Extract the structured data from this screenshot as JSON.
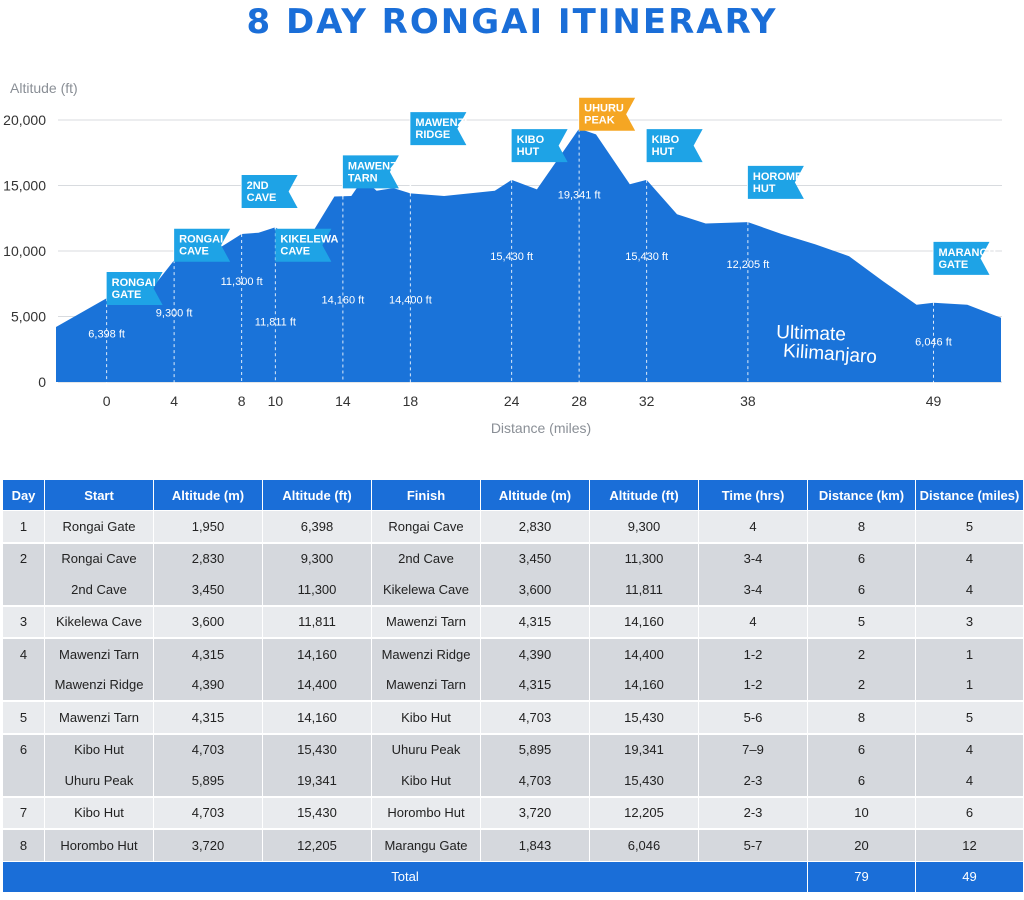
{
  "title": "8 DAY RONGAI ITINERARY",
  "chart_data": {
    "type": "area",
    "ylabel": "Altitude (ft)",
    "xlabel": "Distance (miles)",
    "ylim": [
      0,
      21000
    ],
    "xlim": [
      -3,
      53
    ],
    "yticks": [
      0,
      5000,
      10000,
      15000,
      20000
    ],
    "ytick_labels": [
      "0",
      "5,000",
      "10,000",
      "15,000",
      "20,000"
    ],
    "xticks": [
      0,
      4,
      8,
      10,
      14,
      18,
      24,
      28,
      32,
      38,
      49
    ],
    "grid": "horizontal",
    "color": "#1a73d9",
    "profile": {
      "x": [
        -3,
        0,
        1,
        2.6,
        4,
        5,
        6.4,
        8,
        9,
        10,
        11,
        12,
        13.5,
        14.5,
        15.2,
        16,
        17,
        18,
        20,
        23,
        24,
        25.5,
        28,
        29,
        31,
        32,
        33.8,
        35.5,
        38,
        40,
        42,
        44,
        46,
        48,
        49,
        51,
        53
      ],
      "y": [
        4200,
        6398,
        6200,
        7000,
        9300,
        9800,
        10000,
        11300,
        11400,
        11811,
        10900,
        11000,
        14160,
        14200,
        15500,
        14600,
        14800,
        14400,
        14200,
        14600,
        15430,
        14700,
        19341,
        18900,
        15100,
        15430,
        12800,
        12100,
        12205,
        11300,
        10500,
        9600,
        7700,
        5900,
        6046,
        5900,
        4900
      ]
    },
    "markers": [
      {
        "x": 0,
        "y": 6398,
        "flag": [
          "RONGAI",
          "GATE"
        ],
        "value_label": "6,398 ft",
        "flag_alt": 8400,
        "label_alt": 3400,
        "highlight": false
      },
      {
        "x": 4,
        "y": 9300,
        "flag": [
          "RONGAI",
          "CAVE"
        ],
        "value_label": "9,300 ft",
        "flag_alt": 11700,
        "label_alt": 5000,
        "highlight": false
      },
      {
        "x": 8,
        "y": 11300,
        "flag": [
          "2ND",
          "CAVE"
        ],
        "value_label": "11,300 ft",
        "flag_alt": 15800,
        "label_alt": 7400,
        "highlight": false
      },
      {
        "x": 10,
        "y": 11811,
        "flag": [
          "KIKELEWA",
          "CAVE"
        ],
        "value_label": "11,811 ft",
        "flag_alt": 11700,
        "label_alt": 4300,
        "highlight": false
      },
      {
        "x": 14,
        "y": 14160,
        "flag": [
          "MAWENZI",
          "TARN"
        ],
        "value_label": "14,160 ft",
        "flag_alt": 17300,
        "label_alt": 6000,
        "highlight": false
      },
      {
        "x": 18,
        "y": 14400,
        "flag": [
          "MAWENZI",
          "RIDGE"
        ],
        "value_label": "14,400 ft",
        "flag_alt": 20600,
        "label_alt": 6000,
        "highlight": false
      },
      {
        "x": 24,
        "y": 15430,
        "flag": [
          "KIBO",
          "HUT"
        ],
        "value_label": "15,430 ft",
        "flag_alt": 19300,
        "label_alt": 9300,
        "highlight": false
      },
      {
        "x": 28,
        "y": 19341,
        "flag": [
          "UHURU",
          "PEAK"
        ],
        "value_label": "19,341 ft",
        "flag_alt": 21700,
        "label_alt": 14000,
        "highlight": true
      },
      {
        "x": 32,
        "y": 15430,
        "flag": [
          "KIBO",
          "HUT"
        ],
        "value_label": "15,430 ft",
        "flag_alt": 19300,
        "label_alt": 9300,
        "highlight": false
      },
      {
        "x": 38,
        "y": 12205,
        "flag": [
          "HOROMBO",
          "HUT"
        ],
        "value_label": "12,205 ft",
        "flag_alt": 16500,
        "label_alt": 8700,
        "highlight": false
      },
      {
        "x": 49,
        "y": 6046,
        "flag": [
          "MARANGU",
          "GATE"
        ],
        "value_label": "6,046 ft",
        "flag_alt": 10700,
        "label_alt": 2800,
        "highlight": false
      }
    ]
  },
  "watermark": [
    "Ultimate",
    "Kilimanjaro"
  ],
  "table": {
    "headers": [
      "Day",
      "Start",
      "Altitude (m)",
      "Altitude (ft)",
      "Finish",
      "Altitude (m)",
      "Altitude (ft)",
      "Time (hrs)",
      "Distance (km)",
      "Distance (miles)"
    ],
    "rows": [
      {
        "day": "1",
        "cells": [
          "Rongai Gate",
          "1,950",
          "6,398",
          "Rongai Cave",
          "2,830",
          "9,300",
          "4",
          "8",
          "5"
        ],
        "group": 0
      },
      {
        "day": "2",
        "cells": [
          "Rongai Cave",
          "2,830",
          "9,300",
          "2nd Cave",
          "3,450",
          "11,300",
          "3-4",
          "6",
          "4"
        ],
        "group": 1
      },
      {
        "day": "",
        "cells": [
          "2nd Cave",
          "3,450",
          "11,300",
          "Kikelewa Cave",
          "3,600",
          "11,811",
          "3-4",
          "6",
          "4"
        ],
        "group": 1
      },
      {
        "day": "3",
        "cells": [
          "Kikelewa Cave",
          "3,600",
          "11,811",
          "Mawenzi Tarn",
          "4,315",
          "14,160",
          "4",
          "5",
          "3"
        ],
        "group": 0
      },
      {
        "day": "4",
        "cells": [
          "Mawenzi Tarn",
          "4,315",
          "14,160",
          "Mawenzi Ridge",
          "4,390",
          "14,400",
          "1-2",
          "2",
          "1"
        ],
        "group": 1
      },
      {
        "day": "",
        "cells": [
          "Mawenzi Ridge",
          "4,390",
          "14,400",
          "Mawenzi Tarn",
          "4,315",
          "14,160",
          "1-2",
          "2",
          "1"
        ],
        "group": 1
      },
      {
        "day": "5",
        "cells": [
          "Mawenzi Tarn",
          "4,315",
          "14,160",
          "Kibo Hut",
          "4,703",
          "15,430",
          "5-6",
          "8",
          "5"
        ],
        "group": 0
      },
      {
        "day": "6",
        "cells": [
          "Kibo Hut",
          "4,703",
          "15,430",
          "Uhuru Peak",
          "5,895",
          "19,341",
          "7–9",
          "6",
          "4"
        ],
        "group": 1
      },
      {
        "day": "",
        "cells": [
          "Uhuru Peak",
          "5,895",
          "19,341",
          "Kibo Hut",
          "4,703",
          "15,430",
          "2-3",
          "6",
          "4"
        ],
        "group": 1
      },
      {
        "day": "7",
        "cells": [
          "Kibo Hut",
          "4,703",
          "15,430",
          "Horombo Hut",
          "3,720",
          "12,205",
          "2-3",
          "10",
          "6"
        ],
        "group": 0
      },
      {
        "day": "8",
        "cells": [
          "Horombo Hut",
          "3,720",
          "12,205",
          "Marangu Gate",
          "1,843",
          "6,046",
          "5-7",
          "20",
          "12"
        ],
        "group": 1
      }
    ],
    "total": {
      "label": "Total",
      "km": "79",
      "miles": "49"
    }
  },
  "colors": {
    "primary": "#1a6ed8",
    "flag": "#1ea3e6",
    "flag_highlight": "#f5a623",
    "row_light": "#e9ebee",
    "row_dark": "#d5d8dd"
  }
}
